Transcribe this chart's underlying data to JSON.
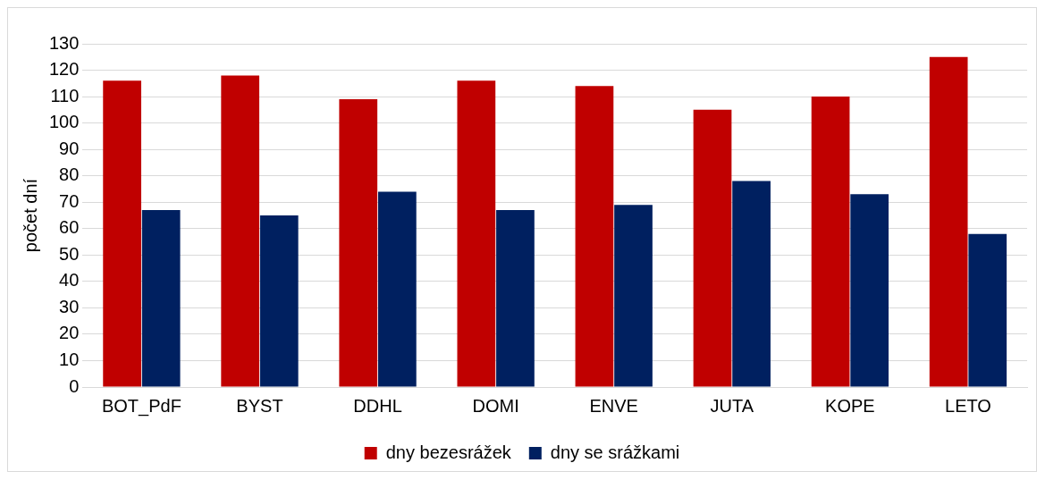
{
  "chart_data": {
    "type": "bar",
    "ylabel": "počet dní",
    "categories": [
      "BOT_PdF",
      "BYST",
      "DDHL",
      "DOMI",
      "ENVE",
      "JUTA",
      "KOPE",
      "LETO"
    ],
    "series": [
      {
        "name": "dny bezesrážek",
        "color": "#c00000",
        "values": [
          116,
          118,
          109,
          116,
          114,
          105,
          110,
          125
        ]
      },
      {
        "name": "dny se srážkami",
        "color": "#002060",
        "values": [
          67,
          65,
          74,
          67,
          69,
          78,
          73,
          58
        ]
      }
    ],
    "ylim": [
      0,
      130
    ],
    "yticks": [
      0,
      10,
      20,
      30,
      40,
      50,
      60,
      70,
      80,
      90,
      100,
      110,
      120,
      130
    ],
    "grid": "y",
    "legend": "bottom"
  }
}
